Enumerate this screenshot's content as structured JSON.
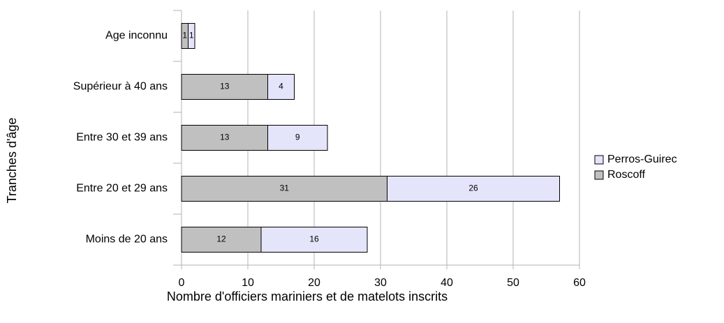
{
  "chart_data": {
    "type": "bar",
    "orientation": "horizontal",
    "stacked": true,
    "xlabel": "Nombre d'officiers mariniers et de matelots inscrits",
    "ylabel": "Tranches d'âge",
    "categories": [
      "Age inconnu",
      "Supérieur à 40 ans",
      "Entre 30 et 39 ans",
      "Entre 20 et 29 ans",
      "Moins de 20 ans"
    ],
    "series": [
      {
        "name": "Roscoff",
        "color": "#c0c0c0",
        "values": [
          1,
          13,
          13,
          31,
          12
        ]
      },
      {
        "name": "Perros-Guirec",
        "color": "#e4e4fa",
        "values": [
          1,
          4,
          9,
          26,
          16
        ]
      }
    ],
    "xlim": [
      0,
      60
    ],
    "xticks": [
      0,
      10,
      20,
      30,
      40,
      50,
      60
    ],
    "grid": true,
    "legend": "right"
  }
}
